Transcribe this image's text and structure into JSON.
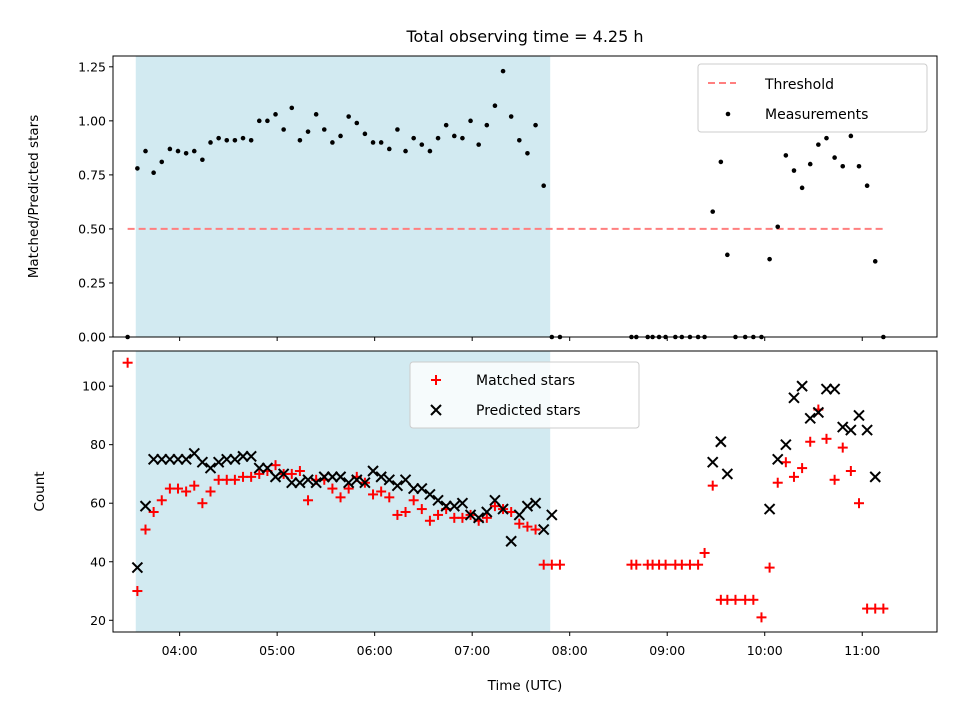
{
  "chart_data": [
    {
      "type": "scatter",
      "title": "Total observing time = 4.25 h",
      "ylabel": "Matched/Predicted stars",
      "xlabel": "",
      "xlim": [
        "03:19",
        "11:46"
      ],
      "ylim": [
        0,
        1.3
      ],
      "yticks": [
        "0.00",
        "0.25",
        "0.50",
        "0.75",
        "1.00",
        "1.25"
      ],
      "shaded_interval": [
        "03:33",
        "07:48"
      ],
      "shaded_color": "#add8e6",
      "threshold": {
        "name": "Threshold",
        "y": 0.5,
        "x_range": [
          "03:28",
          "11:13"
        ],
        "color": "#ff7f7f"
      },
      "legend": [
        "Threshold",
        "Measurements"
      ],
      "legend_position": "upper right",
      "series": [
        {
          "name": "Measurements",
          "color": "#000000",
          "x": [
            "03:28",
            "03:34",
            "03:39",
            "03:44",
            "03:49",
            "03:54",
            "03:59",
            "04:04",
            "04:09",
            "04:14",
            "04:19",
            "04:24",
            "04:29",
            "04:34",
            "04:39",
            "04:44",
            "04:49",
            "04:54",
            "04:59",
            "05:04",
            "05:09",
            "05:14",
            "05:19",
            "05:24",
            "05:29",
            "05:34",
            "05:39",
            "05:44",
            "05:49",
            "05:54",
            "05:59",
            "06:04",
            "06:09",
            "06:14",
            "06:19",
            "06:24",
            "06:29",
            "06:34",
            "06:39",
            "06:44",
            "06:49",
            "06:54",
            "06:59",
            "07:04",
            "07:09",
            "07:14",
            "07:19",
            "07:24",
            "07:29",
            "07:34",
            "07:39",
            "07:44",
            "07:49",
            "07:54",
            "08:38",
            "08:41",
            "08:48",
            "08:51",
            "08:55",
            "08:59",
            "09:05",
            "09:09",
            "09:14",
            "09:19",
            "09:23",
            "09:28",
            "09:33",
            "09:37",
            "09:42",
            "09:48",
            "09:53",
            "09:58",
            "10:03",
            "10:08",
            "10:13",
            "10:18",
            "10:23",
            "10:28",
            "10:33",
            "10:38",
            "10:43",
            "10:48",
            "10:53",
            "10:58",
            "11:03",
            "11:08",
            "11:13"
          ],
          "y": [
            0.0,
            0.78,
            0.86,
            0.76,
            0.81,
            0.87,
            0.86,
            0.85,
            0.86,
            0.82,
            0.9,
            0.92,
            0.91,
            0.91,
            0.92,
            0.91,
            1.0,
            1.0,
            1.03,
            0.96,
            1.06,
            0.91,
            0.95,
            1.03,
            0.96,
            0.9,
            0.93,
            1.02,
            0.99,
            0.94,
            0.9,
            0.9,
            0.87,
            0.96,
            0.86,
            0.92,
            0.89,
            0.86,
            0.92,
            0.98,
            0.93,
            0.92,
            1.0,
            0.89,
            0.98,
            1.07,
            1.23,
            1.02,
            0.91,
            0.85,
            0.98,
            0.7,
            0.0,
            0.0,
            0.0,
            0.0,
            0.0,
            0.0,
            0.0,
            0.0,
            0.0,
            0.0,
            0.0,
            0.0,
            0.0,
            0.58,
            0.81,
            0.38,
            0.0,
            0.0,
            0.0,
            0.0,
            0.36,
            0.51,
            0.84,
            0.77,
            0.69,
            0.8,
            0.89,
            0.92,
            0.83,
            0.79,
            0.93,
            0.79,
            0.7,
            0.35,
            0.0
          ]
        }
      ]
    },
    {
      "type": "scatter",
      "title": "",
      "xlabel": "Time (UTC)",
      "ylabel": "Count",
      "xlim": [
        "03:19",
        "11:46"
      ],
      "ylim": [
        16,
        112
      ],
      "yticks": [
        "20",
        "40",
        "60",
        "80",
        "100"
      ],
      "xticks": [
        "04:00",
        "05:00",
        "06:00",
        "07:00",
        "08:00",
        "09:00",
        "10:00",
        "11:00"
      ],
      "shaded_interval": [
        "03:33",
        "07:48"
      ],
      "shaded_color": "#add8e6",
      "legend": [
        "Matched stars",
        "Predicted stars"
      ],
      "legend_position": "upper center",
      "series": [
        {
          "name": "Matched stars",
          "marker": "plus",
          "color": "#ff0000",
          "x": [
            "03:28",
            "03:34",
            "03:39",
            "03:44",
            "03:49",
            "03:54",
            "03:59",
            "04:04",
            "04:09",
            "04:14",
            "04:19",
            "04:24",
            "04:29",
            "04:34",
            "04:39",
            "04:44",
            "04:49",
            "04:54",
            "04:59",
            "05:04",
            "05:09",
            "05:14",
            "05:19",
            "05:24",
            "05:29",
            "05:34",
            "05:39",
            "05:44",
            "05:49",
            "05:54",
            "05:59",
            "06:04",
            "06:09",
            "06:14",
            "06:19",
            "06:24",
            "06:29",
            "06:34",
            "06:39",
            "06:44",
            "06:49",
            "06:54",
            "06:59",
            "07:04",
            "07:09",
            "07:14",
            "07:19",
            "07:24",
            "07:29",
            "07:34",
            "07:39",
            "07:44",
            "07:49",
            "07:54",
            "08:38",
            "08:41",
            "08:48",
            "08:51",
            "08:55",
            "08:59",
            "09:05",
            "09:09",
            "09:14",
            "09:19",
            "09:23",
            "09:28",
            "09:33",
            "09:37",
            "09:42",
            "09:48",
            "09:53",
            "09:58",
            "10:03",
            "10:08",
            "10:13",
            "10:18",
            "10:23",
            "10:28",
            "10:33",
            "10:38",
            "10:43",
            "10:48",
            "10:53",
            "10:58",
            "11:03",
            "11:08",
            "11:13"
          ],
          "y": [
            108,
            30,
            51,
            57,
            61,
            65,
            65,
            64,
            66,
            60,
            64,
            68,
            68,
            68,
            69,
            69,
            70,
            71,
            73,
            70,
            70,
            71,
            61,
            68,
            68,
            65,
            62,
            65,
            69,
            67,
            63,
            64,
            62,
            56,
            57,
            61,
            58,
            54,
            56,
            58,
            55,
            55,
            56,
            54,
            55,
            59,
            58,
            57,
            53,
            52,
            51,
            39,
            39,
            39,
            39,
            39,
            39,
            39,
            39,
            39,
            39,
            39,
            39,
            39,
            43,
            66,
            27,
            27,
            27,
            27,
            27,
            21,
            38,
            67,
            74,
            69,
            72,
            81,
            92,
            82,
            68,
            79,
            71,
            60,
            24,
            24,
            24
          ]
        },
        {
          "name": "Predicted stars",
          "marker": "x",
          "color": "#000000",
          "x": [
            "03:34",
            "03:39",
            "03:44",
            "03:49",
            "03:54",
            "03:59",
            "04:04",
            "04:09",
            "04:14",
            "04:19",
            "04:24",
            "04:29",
            "04:34",
            "04:39",
            "04:44",
            "04:49",
            "04:54",
            "04:59",
            "05:04",
            "05:09",
            "05:14",
            "05:19",
            "05:24",
            "05:29",
            "05:34",
            "05:39",
            "05:44",
            "05:49",
            "05:54",
            "05:59",
            "06:04",
            "06:09",
            "06:14",
            "06:19",
            "06:24",
            "06:29",
            "06:34",
            "06:39",
            "06:44",
            "06:49",
            "06:54",
            "06:59",
            "07:04",
            "07:09",
            "07:14",
            "07:19",
            "07:24",
            "07:29",
            "07:34",
            "07:39",
            "07:44",
            "07:49",
            "09:28",
            "09:33",
            "09:37",
            "10:03",
            "10:08",
            "10:13",
            "10:18",
            "10:23",
            "10:28",
            "10:33",
            "10:38",
            "10:43",
            "10:48",
            "10:53",
            "10:58",
            "11:03",
            "11:08"
          ],
          "y": [
            38,
            59,
            75,
            75,
            75,
            75,
            75,
            77,
            74,
            72,
            74,
            75,
            75,
            76,
            76,
            72,
            72,
            69,
            70,
            67,
            67,
            68,
            67,
            69,
            69,
            69,
            67,
            68,
            67,
            71,
            69,
            68,
            66,
            68,
            65,
            65,
            63,
            61,
            59,
            59,
            60,
            56,
            55,
            57,
            61,
            58,
            47,
            56,
            59,
            60,
            51,
            56,
            74,
            81,
            70,
            58,
            75,
            80,
            96,
            100,
            89,
            91,
            99,
            99,
            86,
            85,
            90,
            85,
            69
          ]
        }
      ]
    }
  ]
}
